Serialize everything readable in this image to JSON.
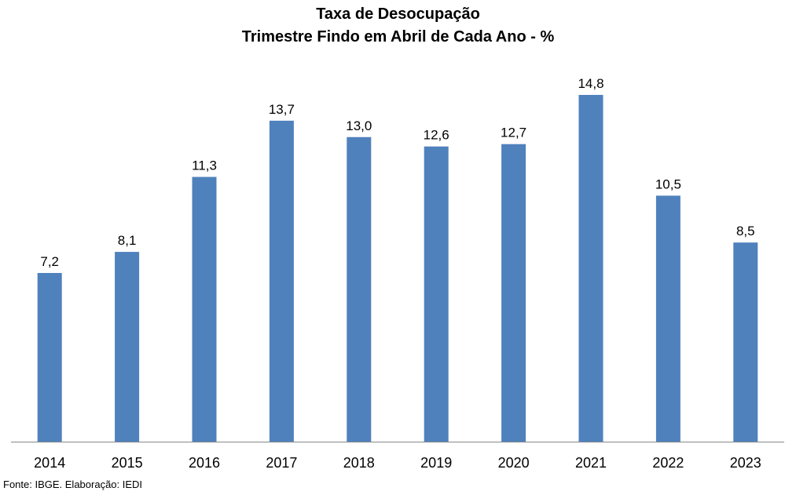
{
  "chart_data": {
    "type": "bar",
    "title": "Taxa de Desocupação",
    "subtitle": "Trimestre Findo em Abril de Cada Ano - %",
    "categories": [
      "2014",
      "2015",
      "2016",
      "2017",
      "2018",
      "2019",
      "2020",
      "2021",
      "2022",
      "2023"
    ],
    "values": [
      7.2,
      8.1,
      11.3,
      13.7,
      13.0,
      12.6,
      12.7,
      14.8,
      10.5,
      8.5
    ],
    "data_labels": [
      "7,2",
      "8,1",
      "11,3",
      "13,7",
      "13,0",
      "12,6",
      "12,7",
      "14,8",
      "10,5",
      "8,5"
    ],
    "xlabel": "",
    "ylabel": "",
    "ylim": [
      0,
      16
    ],
    "grid": false,
    "legend": "none",
    "bar_color": "#4F81BD"
  },
  "source": "Fonte: IBGE. Elaboração: IEDI"
}
